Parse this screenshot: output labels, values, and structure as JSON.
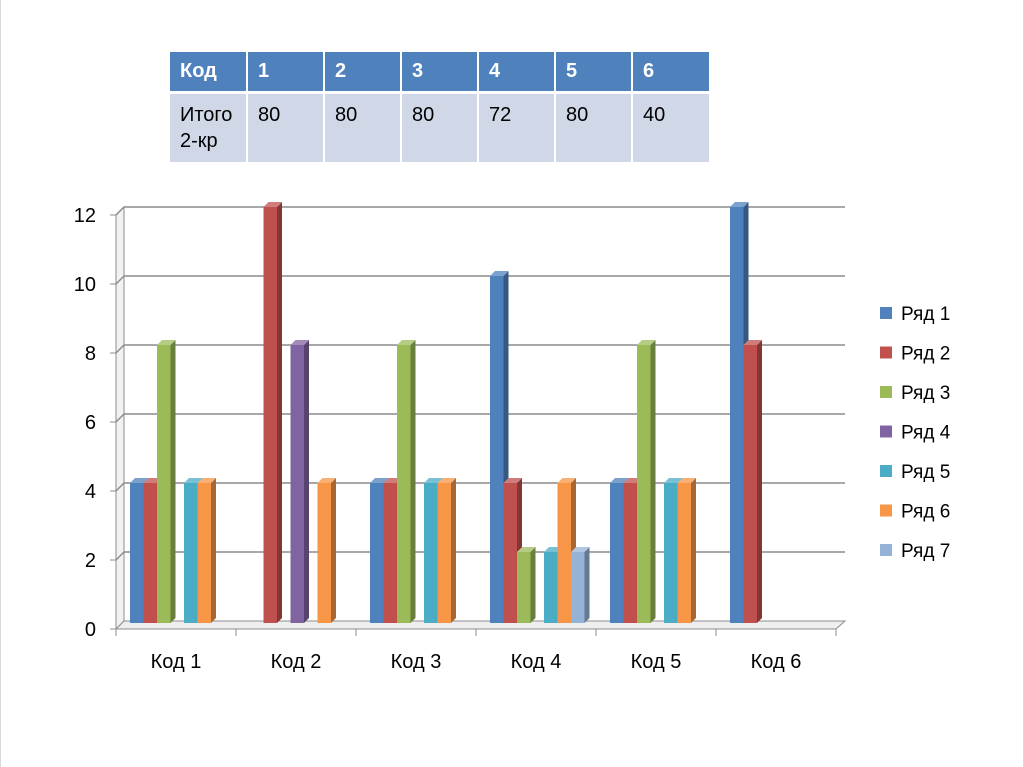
{
  "table": {
    "headers": [
      "Код",
      "1",
      "2",
      "3",
      "4",
      "5",
      "6"
    ],
    "row": [
      "Итого 2-кр",
      "80",
      "80",
      "80",
      "72",
      "80",
      "40"
    ]
  },
  "chart_data": {
    "type": "bar",
    "categories": [
      "Код 1",
      "Код 2",
      "Код 3",
      "Код 4",
      "Код 5",
      "Код 6"
    ],
    "series": [
      {
        "name": "Ряд 1",
        "color": "#4f81bd",
        "values": [
          4,
          0,
          4,
          10,
          4,
          12
        ]
      },
      {
        "name": "Ряд 2",
        "color": "#c0504d",
        "values": [
          4,
          12,
          4,
          4,
          4,
          8
        ]
      },
      {
        "name": "Ряд 3",
        "color": "#9bbb59",
        "values": [
          8,
          0,
          8,
          2,
          8,
          0
        ]
      },
      {
        "name": "Ряд 4",
        "color": "#8064a2",
        "values": [
          0,
          8,
          0,
          0,
          0,
          0
        ]
      },
      {
        "name": "Ряд 5",
        "color": "#4bacc6",
        "values": [
          4,
          0,
          4,
          2,
          4,
          0
        ]
      },
      {
        "name": "Ряд 6",
        "color": "#f79646",
        "values": [
          4,
          4,
          4,
          4,
          4,
          0
        ]
      },
      {
        "name": "Ряд 7",
        "color": "#95b3d7",
        "values": [
          0,
          0,
          0,
          2,
          0,
          0
        ]
      }
    ],
    "y_ticks": [
      "0",
      "2",
      "4",
      "6",
      "8",
      "10",
      "12"
    ],
    "ylim": [
      0,
      12
    ],
    "grid": true,
    "legend": "right"
  }
}
